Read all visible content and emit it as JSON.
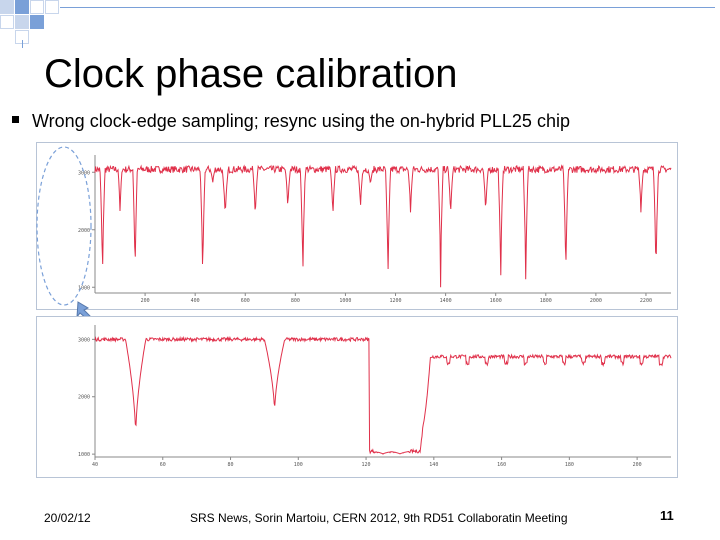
{
  "slide": {
    "title": "Clock phase calibration",
    "bullet": "Wrong clock-edge sampling;  resync using the on-hybrid PLL25 chip"
  },
  "footer": {
    "date": "20/02/12",
    "center": "SRS News, Sorin Martoiu, CERN 2012, 9th RD51 Collaboratin Meeting",
    "page": "11"
  },
  "colors": {
    "signal": "#e0304a",
    "accent_blue": "#7aa0d8",
    "accent_light": "#c8d6ec"
  },
  "chart_data": [
    {
      "type": "line",
      "series": [
        {
          "color": "#e0304a"
        }
      ],
      "xticks": [
        "200",
        "400",
        "600",
        "800",
        "1000",
        "1200",
        "1400",
        "1600",
        "1800",
        "2000",
        "2200"
      ],
      "yticks": [
        "3000",
        "2000",
        "1000"
      ],
      "xlim": [
        0,
        2300
      ],
      "ylim": [
        900,
        3300
      ]
    },
    {
      "type": "line",
      "series": [
        {
          "color": "#e0304a"
        }
      ],
      "xticks": [
        "40",
        "60",
        "80",
        "100",
        "120",
        "140",
        "160",
        "180",
        "200"
      ],
      "yticks": [
        "3000",
        "2000",
        "1000"
      ],
      "xlim": [
        40,
        210
      ],
      "ylim": [
        950,
        3250
      ]
    }
  ]
}
